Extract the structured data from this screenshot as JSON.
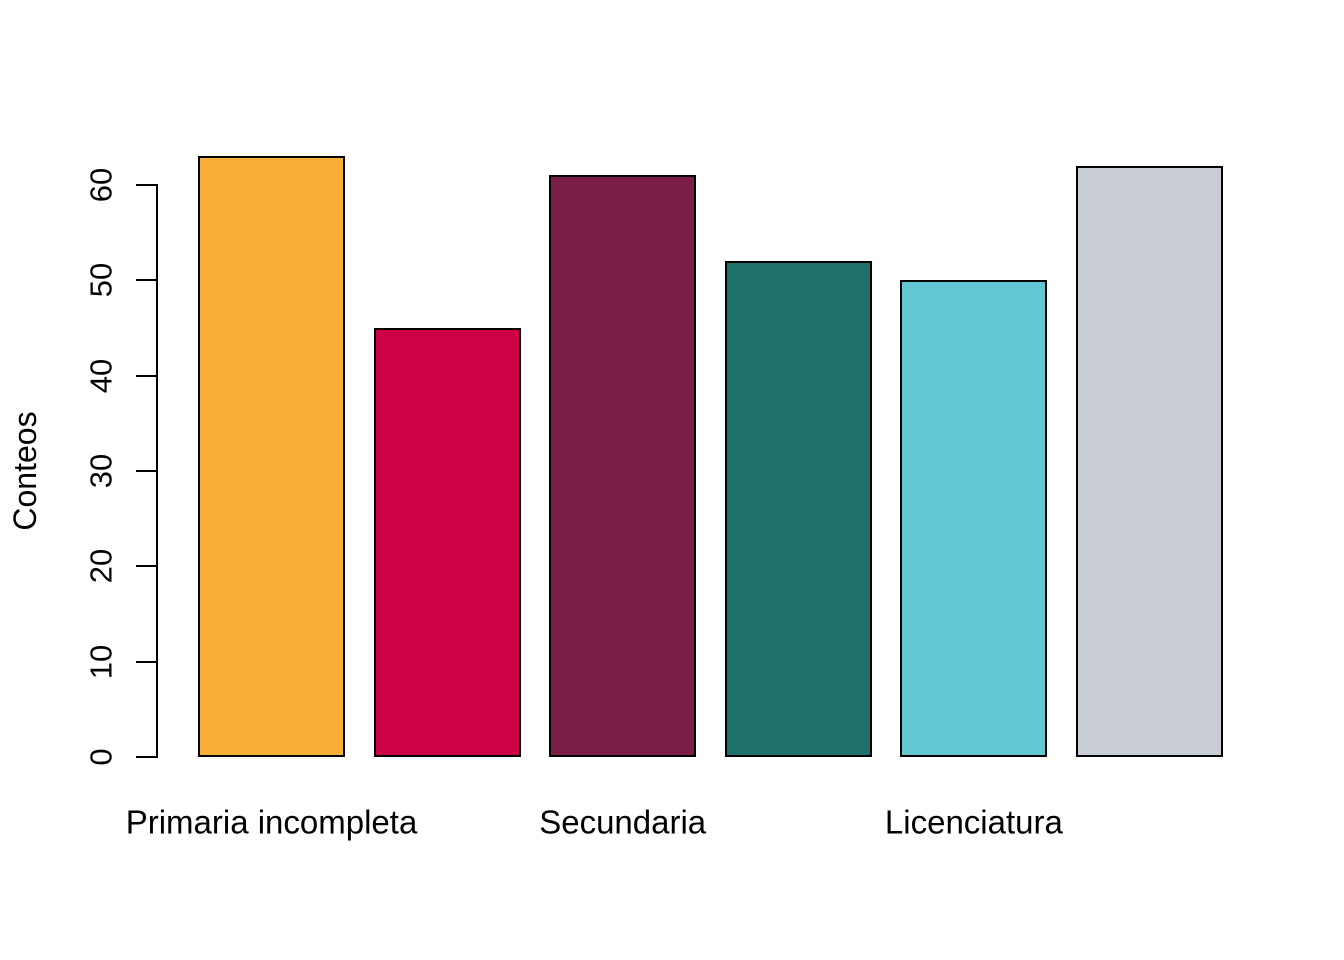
{
  "figure": {
    "background": "#ffffff",
    "text_color": "#000000",
    "axis_color": "#000000"
  },
  "chart_data": {
    "type": "bar",
    "title": "",
    "xlabel": "",
    "ylabel": "Conteos",
    "values": [
      63,
      45,
      61,
      52,
      50,
      62
    ],
    "bar_colors": [
      "#FCAE3B",
      "#CE0048",
      "#7B1E46",
      "#1E706A",
      "#63C6D3",
      "#C8CCD4"
    ],
    "bar_border_color": "#000000",
    "y_ticks": [
      0,
      10,
      20,
      30,
      40,
      50,
      60
    ],
    "ylim": [
      0,
      63
    ],
    "grid": false,
    "visible_x_labels": [
      {
        "label": "Primaria incompleta",
        "bar_index": 0
      },
      {
        "label": "Secundaria",
        "bar_index": 2
      },
      {
        "label": "Licenciatura",
        "bar_index": 4
      }
    ]
  }
}
